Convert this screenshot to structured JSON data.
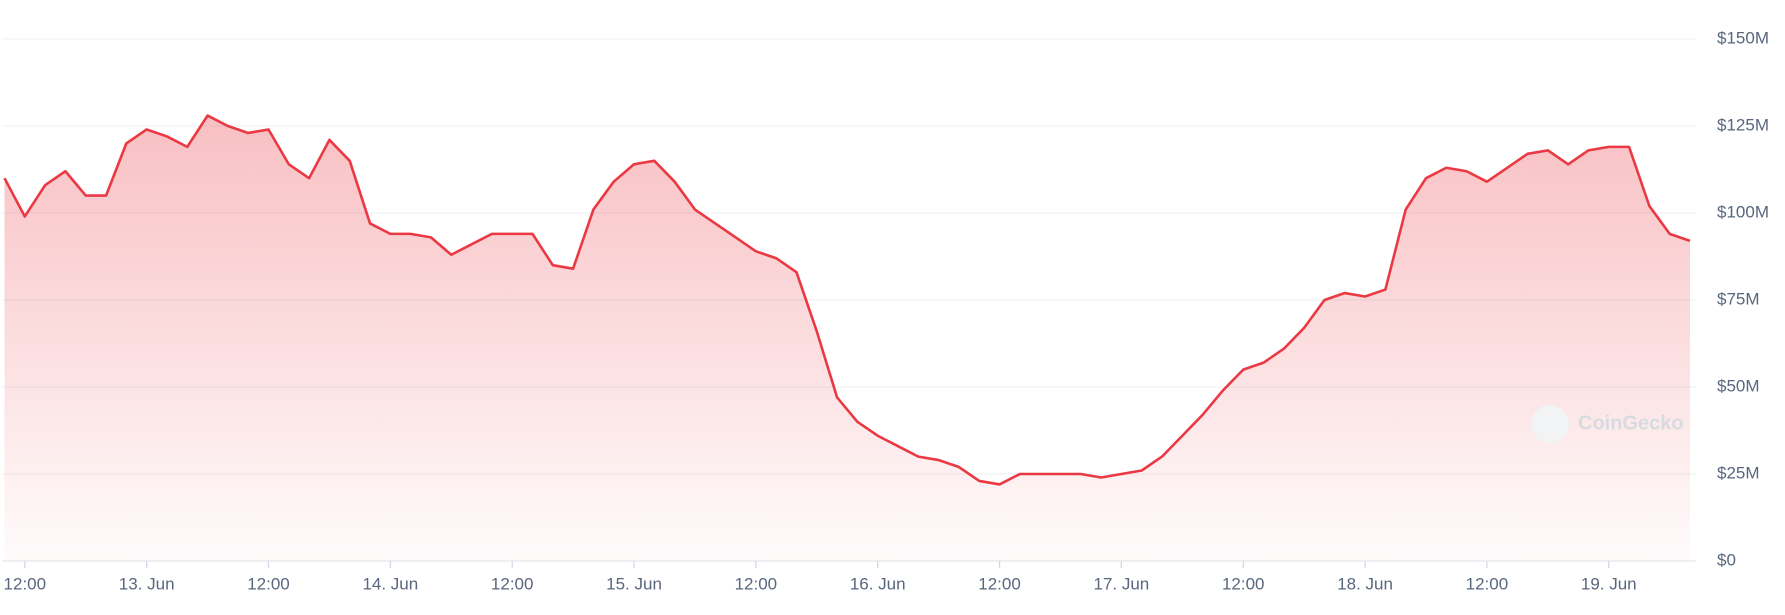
{
  "chart_data": {
    "type": "line",
    "watermark": "CoinGecko",
    "categories": [
      null,
      "12:00",
      null,
      null,
      null,
      null,
      null,
      "13. Jun",
      null,
      null,
      null,
      null,
      null,
      "12:00",
      null,
      null,
      null,
      null,
      null,
      "14. Jun",
      null,
      null,
      null,
      null,
      null,
      "12:00",
      null,
      null,
      null,
      null,
      null,
      "15. Jun",
      null,
      null,
      null,
      null,
      null,
      "12:00",
      null,
      null,
      null,
      null,
      null,
      "16. Jun",
      null,
      null,
      null,
      null,
      null,
      "12:00",
      null,
      null,
      null,
      null,
      null,
      "17. Jun",
      null,
      null,
      null,
      null,
      null,
      "12:00",
      null,
      null,
      null,
      null,
      null,
      "18. Jun",
      null,
      null,
      null,
      null,
      null,
      "12:00",
      null,
      null,
      null,
      null,
      null,
      "19. Jun",
      null,
      null,
      null,
      null
    ],
    "series": [
      {
        "color": "#ea3943",
        "values": [
          110000000,
          99000000,
          108000000,
          112000000,
          105000000,
          105000000,
          120000000,
          124000000,
          122000000,
          119000000,
          128000000,
          125000000,
          123000000,
          124000000,
          114000000,
          110000000,
          121000000,
          115000000,
          97000000,
          94000000,
          94000000,
          93000000,
          88000000,
          91000000,
          94000000,
          94000000,
          94000000,
          85000000,
          84000000,
          101000000,
          109000000,
          114000000,
          115000000,
          109000000,
          101000000,
          97000000,
          93000000,
          89000000,
          87000000,
          83000000,
          66000000,
          47000000,
          40000000,
          36000000,
          33000000,
          30000000,
          29000000,
          27000000,
          23000000,
          22000000,
          25000000,
          25000000,
          25000000,
          25000000,
          24000000,
          25000000,
          26000000,
          30000000,
          36000000,
          42000000,
          49000000,
          55000000,
          57000000,
          61000000,
          67000000,
          75000000,
          77000000,
          76000000,
          78000000,
          101000000,
          110000000,
          113000000,
          112000000,
          109000000,
          113000000,
          117000000,
          118000000,
          114000000,
          118000000,
          119000000,
          119000000,
          102000000,
          94000000,
          92000000
        ]
      }
    ],
    "ylim": [
      0,
      150000000
    ],
    "yticks": [
      {
        "value": 0,
        "label": "$0"
      },
      {
        "value": 25000000,
        "label": "$25M"
      },
      {
        "value": 50000000,
        "label": "$50M"
      },
      {
        "value": 75000000,
        "label": "$75M"
      },
      {
        "value": 100000000,
        "label": "$100M"
      },
      {
        "value": 125000000,
        "label": "$125M"
      },
      {
        "value": 150000000,
        "label": "$150M"
      }
    ],
    "grid": true
  }
}
